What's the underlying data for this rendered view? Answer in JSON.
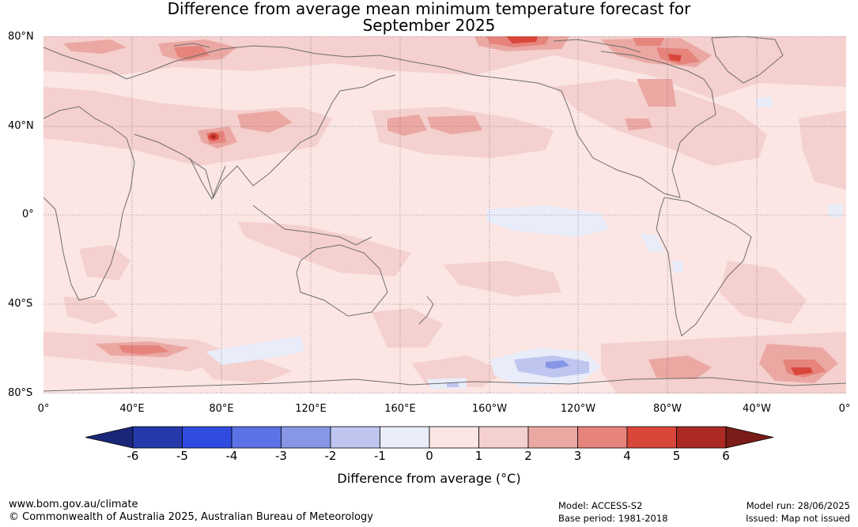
{
  "title": {
    "line1": "Difference from average mean minimum temperature forecast for",
    "line2": "September 2025"
  },
  "map": {
    "lat_labels": [
      "80°N",
      "40°N",
      "0°",
      "40°S",
      "80°S"
    ],
    "lon_labels": [
      "0°",
      "40°E",
      "80°E",
      "120°E",
      "160°E",
      "160°W",
      "120°W",
      "80°W",
      "40°W",
      "0°"
    ],
    "colors": {
      "ocean_base": "#fbe6e4",
      "anom_1_2": "#f4d0ce",
      "anom_2_3": "#eba8a3",
      "anom_3_4": "#e6847c",
      "anom_4_5": "#d9473a",
      "anom_5_6": "#ab2a24",
      "neg_0_1": "#e9ecf9",
      "neg_1_2": "#bec6f0",
      "neg_2_3": "#8797e6",
      "coastline": "#6e6e6e",
      "grid": "#555555"
    }
  },
  "colorbar": {
    "ticks": [
      "-6",
      "-5",
      "-4",
      "-3",
      "-2",
      "-1",
      "0",
      "1",
      "2",
      "3",
      "4",
      "5",
      "6"
    ],
    "colors": [
      "#1a2778",
      "#2639ab",
      "#2f4be0",
      "#5c73e5",
      "#8797e6",
      "#bec6f0",
      "#e9ecf9",
      "#fbe6e4",
      "#f4d0ce",
      "#eba8a3",
      "#e6847c",
      "#d9473a",
      "#ab2a24",
      "#7a1c17"
    ],
    "label": "Difference from average (",
    "label_symbol": "°C",
    "label_end": ")"
  },
  "footer": {
    "website": "www.bom.gov.au/climate",
    "copyright": "© Commonwealth of Australia 2025, Australian Bureau of Meteorology",
    "model": "Model: ACCESS-S2",
    "base_period": "Base period: 1981-2018",
    "model_run": "Model run: 28/06/2025",
    "issued": "Issued: Map not issued"
  }
}
